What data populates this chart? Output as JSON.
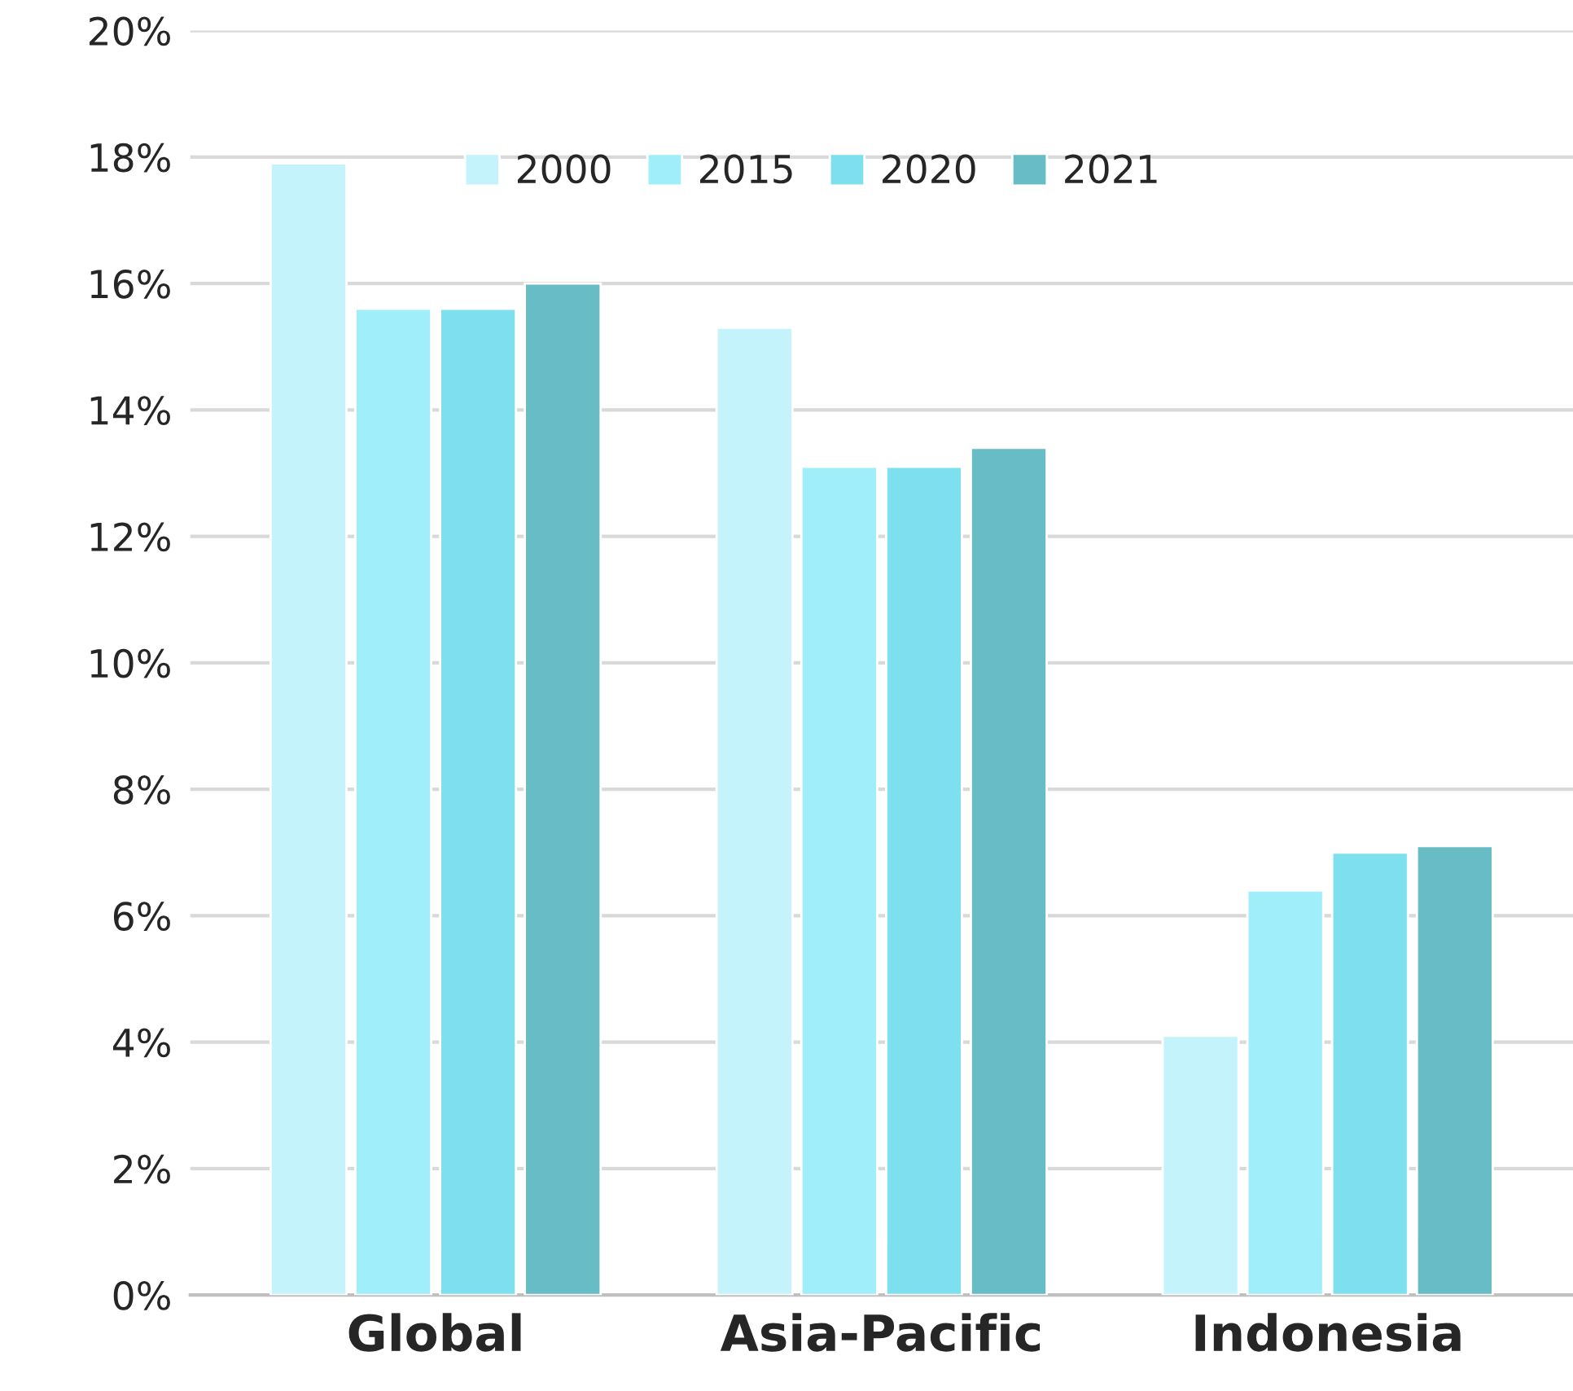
{
  "chart_data": {
    "type": "bar",
    "categories": [
      "Global",
      "Asia-Pacific",
      "Indonesia"
    ],
    "series": [
      {
        "name": "2000",
        "color": "#c5f3fb",
        "values": [
          17.9,
          15.3,
          4.1
        ]
      },
      {
        "name": "2015",
        "color": "#a0eefa",
        "values": [
          15.6,
          13.1,
          6.4
        ]
      },
      {
        "name": "2020",
        "color": "#7ee0ee",
        "values": [
          15.6,
          13.1,
          7.0
        ]
      },
      {
        "name": "2021",
        "color": "#68bcc6",
        "values": [
          16.0,
          13.4,
          7.1
        ]
      }
    ],
    "ylim": [
      0,
      20
    ],
    "yticks": [
      {
        "value": 0,
        "label": "0%"
      },
      {
        "value": 2,
        "label": "2%"
      },
      {
        "value": 4,
        "label": "4%"
      },
      {
        "value": 6,
        "label": "6%"
      },
      {
        "value": 8,
        "label": "8%"
      },
      {
        "value": 10,
        "label": "10%"
      },
      {
        "value": 12,
        "label": "12%"
      },
      {
        "value": 14,
        "label": "14%"
      },
      {
        "value": 16,
        "label": "16%"
      },
      {
        "value": 18,
        "label": "18%"
      },
      {
        "value": 20,
        "label": "20%"
      }
    ],
    "grid": "y",
    "legend": "top"
  }
}
